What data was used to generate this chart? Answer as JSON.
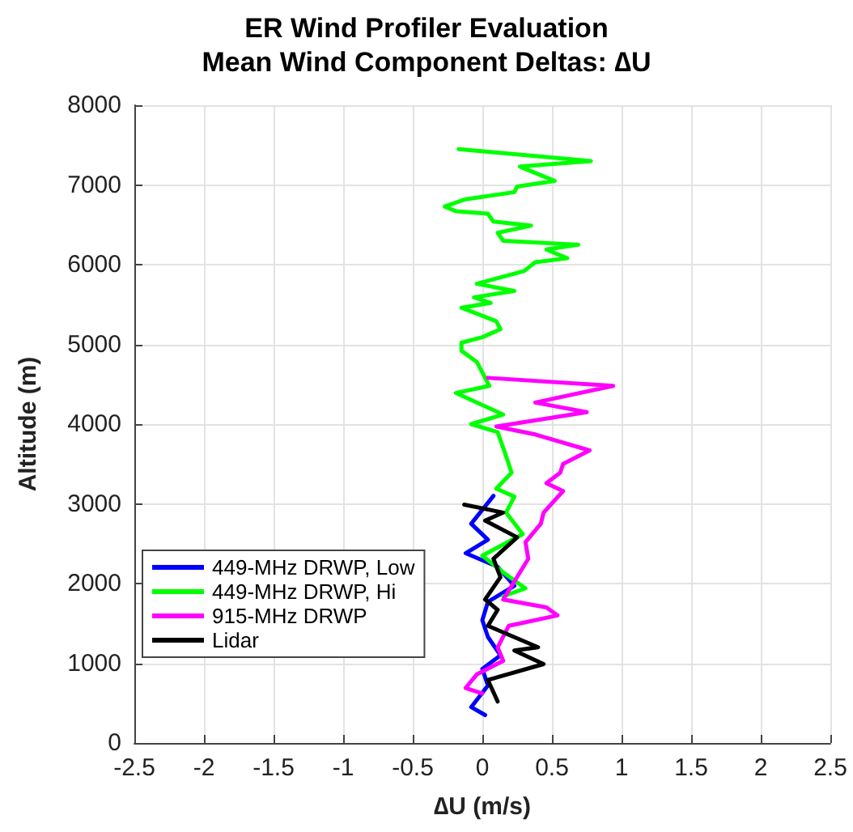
{
  "chart_data": {
    "type": "line",
    "title": "ER Wind Profiler Evaluation",
    "subtitle": "Mean Wind Component Deltas: ∆U",
    "xlabel": "∆U (m/s)",
    "ylabel": "Altitude (m)",
    "xlim": [
      -2.5,
      2.5
    ],
    "xticks": [
      -2.5,
      -2,
      -1.5,
      -1,
      -0.5,
      0,
      0.5,
      1,
      1.5,
      2,
      2.5
    ],
    "ylim": [
      0,
      8000
    ],
    "yticks": [
      0,
      1000,
      2000,
      3000,
      4000,
      5000,
      6000,
      7000,
      8000
    ],
    "grid": true,
    "legend": "bottom left",
    "marker": "none",
    "line_style": "solid",
    "series": [
      {
        "name": "449-MHz DRWP, Low",
        "color": "#0000ff",
        "x": [
          0.08,
          -0.08,
          0.04,
          -0.12,
          0.11,
          0.23,
          0.04,
          0,
          0.04,
          0.13,
          0,
          0.04,
          -0.08,
          0.02
        ],
        "values": [
          3100,
          2750,
          2550,
          2380,
          2210,
          1970,
          1770,
          1540,
          1330,
          1100,
          930,
          720,
          450,
          350
        ]
      },
      {
        "name": "449-MHz DRWP, Hi",
        "color": "#00ff00",
        "x": [
          -0.17,
          0.78,
          0.27,
          0.52,
          0.25,
          0.23,
          -0.12,
          -0.27,
          -0.19,
          0.04,
          0.08,
          0.35,
          0.11,
          0.15,
          0.69,
          0.46,
          0.61,
          0.38,
          0.3,
          -0.04,
          0.23,
          -0.06,
          0.06,
          -0.15,
          0.1,
          0.13,
          0,
          -0.15,
          -0.15,
          -0.04,
          0.02,
          0.05,
          -0.19,
          0.15,
          -0.08,
          0.11,
          0.17,
          0.21,
          0.1,
          0.23,
          0.17,
          0.29,
          0,
          0.15,
          0.31,
          0.15
        ],
        "values": [
          7450,
          7300,
          7230,
          7050,
          6980,
          6910,
          6820,
          6730,
          6670,
          6640,
          6540,
          6490,
          6400,
          6300,
          6250,
          6190,
          6080,
          6030,
          5920,
          5760,
          5670,
          5590,
          5520,
          5460,
          5290,
          5190,
          5090,
          5020,
          4920,
          4780,
          4580,
          4480,
          4390,
          4120,
          4000,
          3900,
          3600,
          3390,
          3190,
          3090,
          2890,
          2620,
          2350,
          2140,
          1940,
          1840
        ]
      },
      {
        "name": "915-MHz DRWP",
        "color": "#ff00ff",
        "x": [
          0.04,
          0.94,
          0.38,
          0.75,
          0.1,
          0.38,
          0.77,
          0.58,
          0.56,
          0.46,
          0.58,
          0.44,
          0.42,
          0.31,
          0.33,
          0.15,
          0.46,
          0.54,
          0.19,
          0.11,
          0.15,
          -0.04,
          -0.12,
          0
        ],
        "values": [
          4580,
          4480,
          4270,
          4150,
          3970,
          3870,
          3670,
          3500,
          3390,
          3260,
          3160,
          2890,
          2750,
          2520,
          2310,
          1800,
          1700,
          1600,
          1470,
          1200,
          1030,
          860,
          690,
          620
        ]
      },
      {
        "name": "Lidar",
        "color": "#000000",
        "x": [
          -0.13,
          0.15,
          0.02,
          0.25,
          0.08,
          0.13,
          0.02,
          0.11,
          0.04,
          0.4,
          0.23,
          0.44,
          0.04,
          0.11
        ],
        "values": [
          2990,
          2890,
          2790,
          2580,
          2310,
          2080,
          1800,
          1670,
          1470,
          1200,
          1160,
          990,
          790,
          520
        ]
      }
    ]
  }
}
